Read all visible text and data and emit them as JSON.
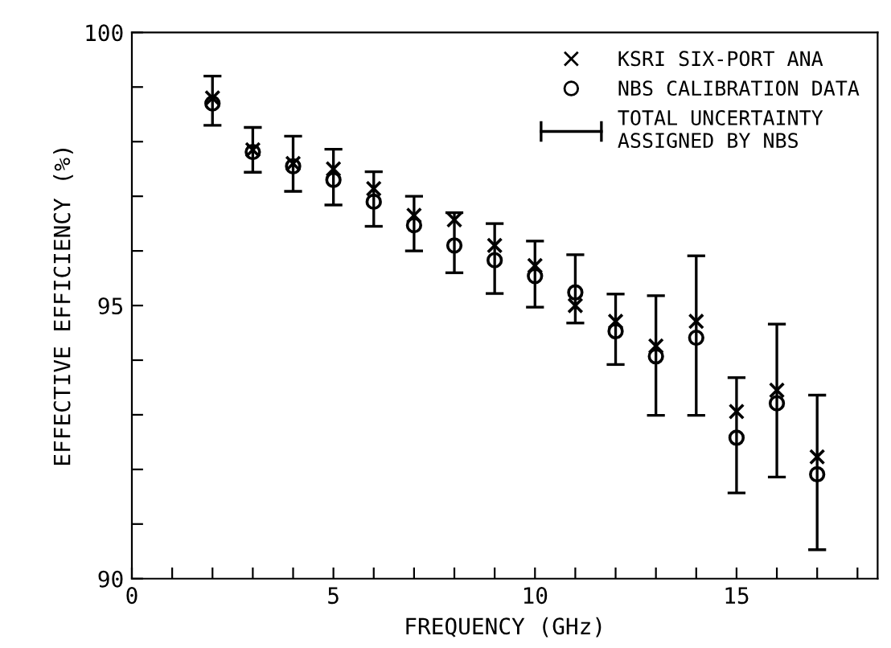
{
  "chart_data": {
    "type": "scatter",
    "xlabel": "FREQUENCY (GHz)",
    "ylabel": "EFFECTIVE EFFICIENCY (%)",
    "x": [
      2,
      3,
      4,
      5,
      6,
      7,
      8,
      9,
      10,
      11,
      12,
      13,
      14,
      15,
      16,
      17
    ],
    "series": [
      {
        "name": "KSRI SIX-PORT ANA",
        "color": "#000000",
        "marker": "cross",
        "values": [
          98.8,
          97.85,
          97.6,
          97.5,
          97.14,
          96.65,
          96.57,
          96.1,
          95.73,
          95.0,
          94.71,
          94.26,
          94.71,
          93.06,
          93.45,
          92.23
        ]
      },
      {
        "name": "NBS CALIBRATION DATA",
        "color": "#000000",
        "marker": "circle",
        "values": [
          98.7,
          97.81,
          97.55,
          97.3,
          96.9,
          96.47,
          96.1,
          95.83,
          95.54,
          95.24,
          94.53,
          94.07,
          94.41,
          92.58,
          93.21,
          91.91
        ],
        "errors": [
          [
            98.3,
            99.2
          ],
          [
            97.44,
            98.26
          ],
          [
            97.09,
            98.1
          ],
          [
            96.84,
            97.86
          ],
          [
            96.45,
            97.45
          ],
          [
            96.0,
            97.0
          ],
          [
            95.6,
            96.7
          ],
          [
            95.22,
            96.5
          ],
          [
            94.97,
            96.18
          ],
          [
            94.68,
            95.93
          ],
          [
            93.92,
            95.21
          ],
          [
            92.99,
            95.18
          ],
          [
            92.99,
            95.91
          ],
          [
            91.57,
            93.68
          ],
          [
            91.86,
            94.66
          ],
          [
            90.53,
            93.36
          ]
        ]
      }
    ],
    "annotations": [
      "TOTAL UNCERTAINTY\nASSIGNED BY NBS"
    ],
    "xlim": [
      0,
      18.5
    ],
    "ylim": [
      90,
      100
    ],
    "xticks": [
      0,
      {
        "value": 1,
        "label": null
      },
      {
        "value": 2,
        "label": null
      },
      {
        "value": 3,
        "label": null
      },
      {
        "value": 4,
        "label": null
      },
      5,
      {
        "value": 6,
        "label": null
      },
      {
        "value": 7,
        "label": null
      },
      {
        "value": 8,
        "label": null
      },
      {
        "value": 9,
        "label": null
      },
      10,
      {
        "value": 11,
        "label": null
      },
      {
        "value": 12,
        "label": null
      },
      {
        "value": 13,
        "label": null
      },
      {
        "value": 14,
        "label": null
      },
      15,
      {
        "value": 16,
        "label": null
      },
      {
        "value": 17,
        "label": null
      },
      {
        "value": 18,
        "label": null
      }
    ],
    "yticks": [
      90,
      {
        "value": 91,
        "label": null
      },
      {
        "value": 92,
        "label": null
      },
      {
        "value": 93,
        "label": null
      },
      {
        "value": 94,
        "label": null
      },
      95,
      {
        "value": 96,
        "label": null
      },
      {
        "value": 97,
        "label": null
      },
      {
        "value": 98,
        "label": null
      },
      {
        "value": 99,
        "label": null
      },
      100
    ],
    "grid": false,
    "legend": "top right"
  }
}
